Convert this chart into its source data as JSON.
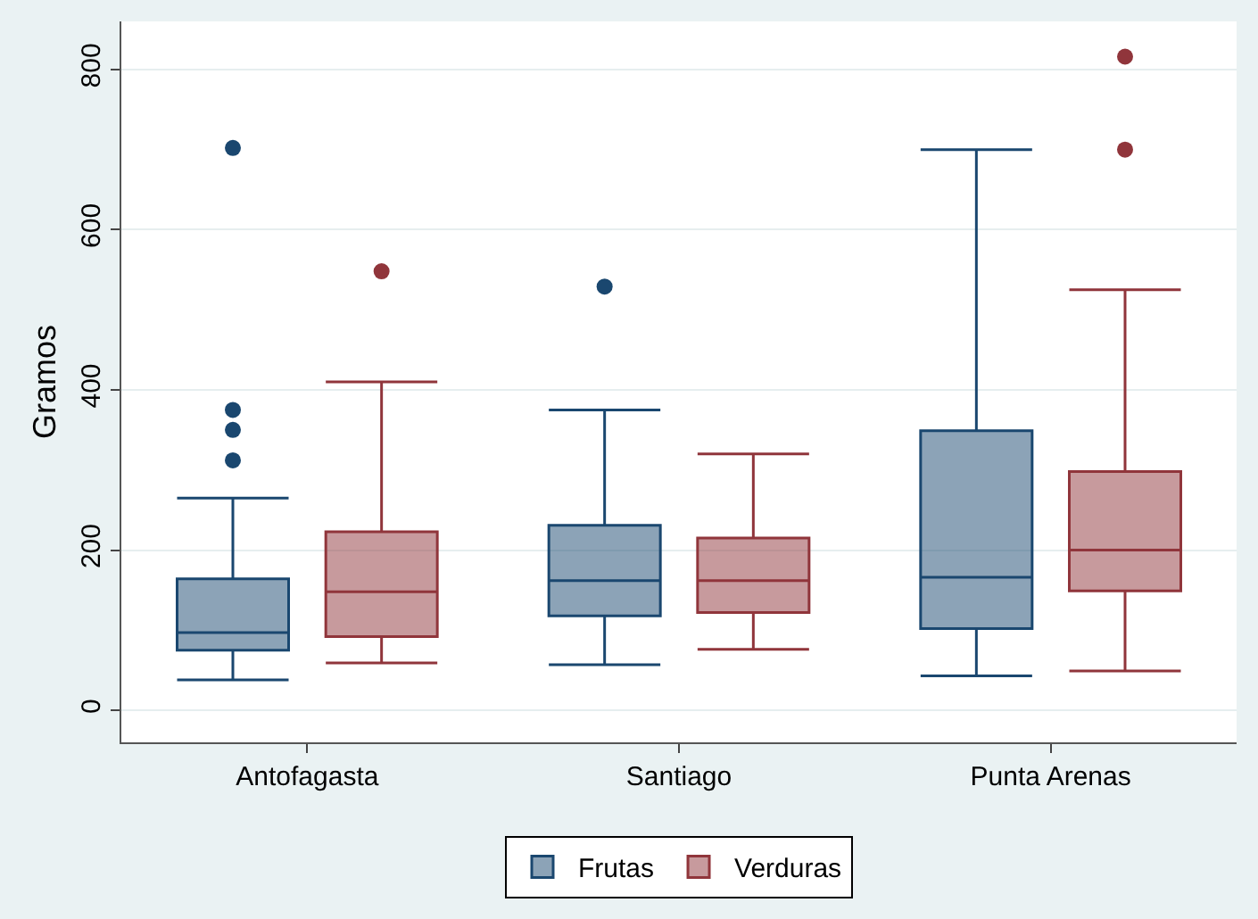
{
  "chart_data": {
    "type": "box",
    "ylabel": "Gramos",
    "categories": [
      "Antofagasta",
      "Santiago",
      "Punta Arenas"
    ],
    "series": [
      {
        "name": "Frutas",
        "color": "#1a476f",
        "boxes": [
          {
            "low": 38,
            "q1": 75,
            "median": 97,
            "q3": 164,
            "high": 265,
            "outliers": [
              312,
              350,
              375,
              702
            ]
          },
          {
            "low": 57,
            "q1": 118,
            "median": 162,
            "q3": 231,
            "high": 375,
            "outliers": [
              529
            ]
          },
          {
            "low": 43,
            "q1": 102,
            "median": 166,
            "q3": 349,
            "high": 700
          }
        ]
      },
      {
        "name": "Verduras",
        "color": "#90353b",
        "boxes": [
          {
            "low": 59,
            "q1": 92,
            "median": 148,
            "q3": 223,
            "high": 410,
            "outliers": [
              548
            ]
          },
          {
            "low": 76,
            "q1": 122,
            "median": 162,
            "q3": 215,
            "high": 320
          },
          {
            "low": 49,
            "q1": 149,
            "median": 200,
            "q3": 298,
            "high": 525,
            "outliers": [
              700,
              816
            ]
          }
        ]
      }
    ],
    "ylim": [
      -40,
      860
    ],
    "yticks": [
      0,
      200,
      400,
      600,
      800
    ],
    "grid": "y",
    "legend": "bottom",
    "marker": "circle"
  }
}
